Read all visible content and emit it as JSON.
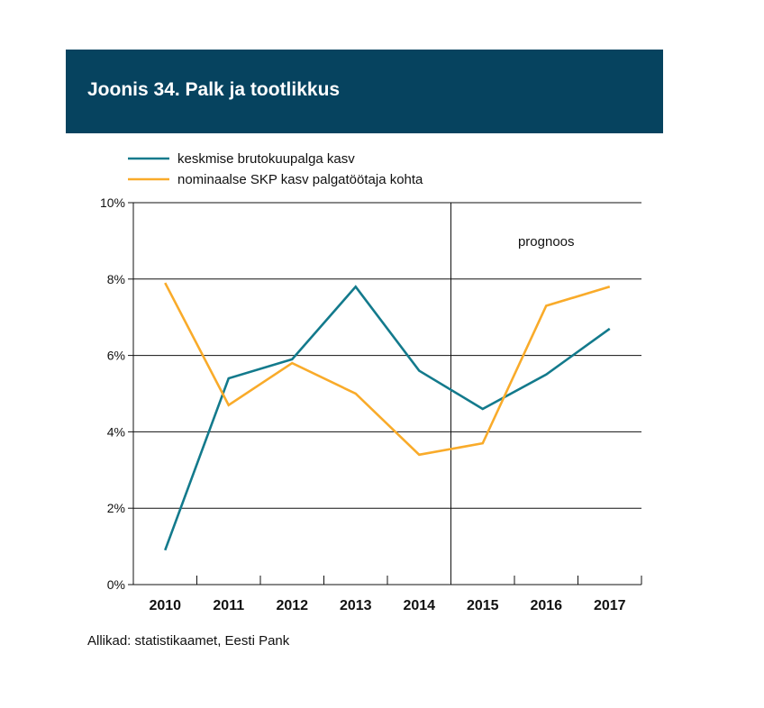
{
  "header": {
    "title": "Joonis 34. Palk ja tootlikkus"
  },
  "source": "Allikad: statistikaamet, Eesti Pank",
  "colors": {
    "banner": "#06435f",
    "series1": "#137a8c",
    "series2": "#f9ab2a"
  },
  "chart_data": {
    "type": "line",
    "title": "",
    "xlabel": "",
    "ylabel": "",
    "categories": [
      "2010",
      "2011",
      "2012",
      "2013",
      "2014",
      "2015",
      "2016",
      "2017"
    ],
    "ylim": [
      0,
      10
    ],
    "yticks": [
      "0%",
      "2%",
      "4%",
      "6%",
      "8%",
      "10%"
    ],
    "grid": true,
    "legend": "top-left",
    "annotation": {
      "text": "prognoos",
      "divider_between": [
        "2014",
        "2015"
      ]
    },
    "series": [
      {
        "name": "keskmise brutokuupalga kasv",
        "color": "#137a8c",
        "values": [
          0.9,
          5.4,
          5.9,
          7.8,
          5.6,
          4.6,
          5.5,
          6.7
        ]
      },
      {
        "name": "nominaalse SKP kasv palgatöötaja kohta",
        "color": "#f9ab2a",
        "values": [
          7.9,
          4.7,
          5.8,
          5.0,
          3.4,
          3.7,
          7.3,
          7.8
        ]
      }
    ]
  }
}
